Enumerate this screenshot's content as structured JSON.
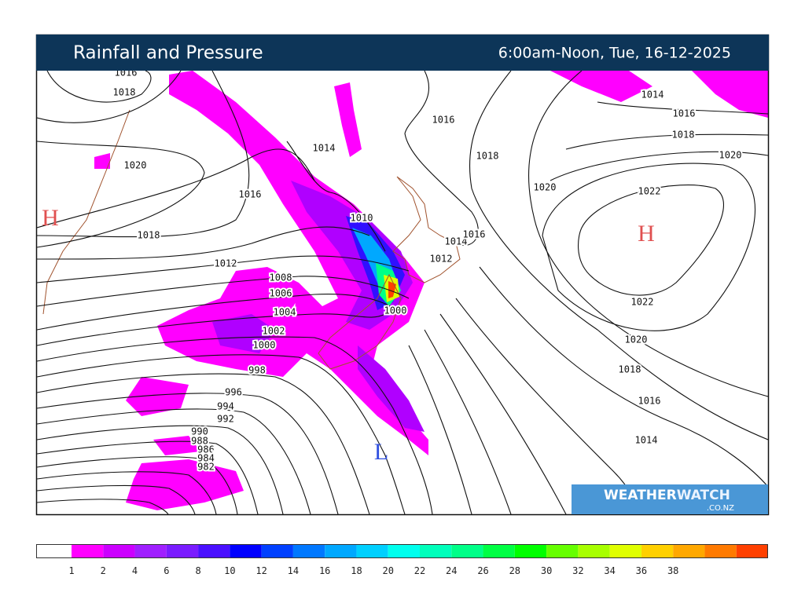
{
  "header": {
    "title": "Rainfall and Pressure",
    "period": "6:00am-Noon, Tue, 16-12-2025"
  },
  "map": {
    "isobar_labels": [
      "1016",
      "1018",
      "1020",
      "1016",
      "1018",
      "1014",
      "1016",
      "1018",
      "1010",
      "1012",
      "1008",
      "1006",
      "1004",
      "1002",
      "1000",
      "998",
      "996",
      "994",
      "992",
      "990",
      "988",
      "986",
      "984",
      "982",
      "1014",
      "1016",
      "1012",
      "1000",
      "1020",
      "1022",
      "1022",
      "1020",
      "1018",
      "1016",
      "1014",
      "1014",
      "1016",
      "1018",
      "1020"
    ],
    "pressure_centers": [
      "H",
      "H",
      "L"
    ]
  },
  "logo": {
    "name_part1": "WEATHER",
    "name_part2": "WATCH",
    "domain": ".CO.NZ"
  },
  "legend": {
    "ticks": [
      "1",
      "2",
      "4",
      "6",
      "8",
      "10",
      "12",
      "14",
      "16",
      "18",
      "20",
      "22",
      "24",
      "26",
      "28",
      "30",
      "32",
      "34",
      "36",
      "38"
    ],
    "colors": [
      "#ffffff",
      "#ff00ff",
      "#cc00ff",
      "#a020ff",
      "#7a1cff",
      "#4a10ff",
      "#0000ff",
      "#0040ff",
      "#0078ff",
      "#00a8ff",
      "#00d0ff",
      "#00ffee",
      "#00ffbb",
      "#00ff88",
      "#00ff44",
      "#00ff00",
      "#66ff00",
      "#a8ff00",
      "#e0ff00",
      "#ffd000",
      "#ffa800",
      "#ff7a00",
      "#ff4000"
    ]
  }
}
